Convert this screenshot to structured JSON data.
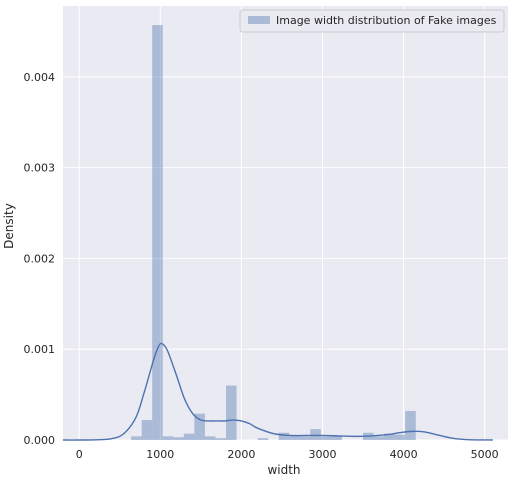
{
  "chart_data": {
    "type": "bar",
    "title": "",
    "xlabel": "width",
    "ylabel": "Density",
    "xlim": [
      -200,
      5300
    ],
    "ylim": [
      0,
      0.00478
    ],
    "x_ticks": [
      0,
      1000,
      2000,
      3000,
      4000,
      5000
    ],
    "x_tick_labels": [
      "0",
      "1000",
      "2000",
      "3000",
      "4000",
      "5000"
    ],
    "y_ticks": [
      0,
      0.001,
      0.002,
      0.003,
      0.004
    ],
    "y_tick_labels": [
      "0.000",
      "0.001",
      "0.002",
      "0.003",
      "0.004"
    ],
    "grid": true,
    "legend_position": "top-right",
    "colors": {
      "background": "#eaeaf2",
      "grid": "#ffffff",
      "bar_fill": "#4c72b0",
      "bar_opacity": 0.4,
      "kde_line": "#4c72b0"
    },
    "series": [
      {
        "name": "Image width distribution of Fake images",
        "type": "histogram",
        "bins": [
          {
            "x0": 640,
            "x1": 770,
            "density": 4e-05
          },
          {
            "x0": 770,
            "x1": 900,
            "density": 0.00022
          },
          {
            "x0": 900,
            "x1": 1030,
            "density": 0.00457
          },
          {
            "x0": 1030,
            "x1": 1160,
            "density": 4e-05
          },
          {
            "x0": 1160,
            "x1": 1290,
            "density": 3e-05
          },
          {
            "x0": 1290,
            "x1": 1420,
            "density": 7e-05
          },
          {
            "x0": 1420,
            "x1": 1550,
            "density": 0.00029
          },
          {
            "x0": 1550,
            "x1": 1680,
            "density": 4e-05
          },
          {
            "x0": 1680,
            "x1": 1810,
            "density": 2e-05
          },
          {
            "x0": 1810,
            "x1": 1940,
            "density": 0.0006
          },
          {
            "x0": 2200,
            "x1": 2330,
            "density": 2e-05
          },
          {
            "x0": 2460,
            "x1": 2590,
            "density": 8e-05
          },
          {
            "x0": 2590,
            "x1": 2720,
            "density": 5e-05
          },
          {
            "x0": 2720,
            "x1": 2850,
            "density": 4e-05
          },
          {
            "x0": 2850,
            "x1": 2980,
            "density": 0.00012
          },
          {
            "x0": 2980,
            "x1": 3110,
            "density": 4e-05
          },
          {
            "x0": 3110,
            "x1": 3240,
            "density": 4e-05
          },
          {
            "x0": 3500,
            "x1": 3630,
            "density": 8e-05
          },
          {
            "x0": 3630,
            "x1": 3760,
            "density": 4e-05
          },
          {
            "x0": 3760,
            "x1": 3890,
            "density": 7e-05
          },
          {
            "x0": 3890,
            "x1": 4020,
            "density": 6e-05
          },
          {
            "x0": 4020,
            "x1": 4150,
            "density": 0.00032
          }
        ],
        "kde": {
          "x": [
            -200,
            0,
            200,
            400,
            550,
            700,
            800,
            900,
            950,
            1000,
            1050,
            1100,
            1200,
            1300,
            1400,
            1500,
            1600,
            1700,
            1800,
            1900,
            2000,
            2100,
            2200,
            2400,
            2600,
            2800,
            3000,
            3200,
            3400,
            3600,
            3800,
            3950,
            4100,
            4250,
            4400,
            4600,
            4800,
            5100
          ],
          "y": [
            0,
            0,
            2e-06,
            1.5e-05,
            7e-05,
            0.00025,
            0.00052,
            0.00083,
            0.00097,
            0.00106,
            0.00104,
            0.00096,
            0.00071,
            0.00045,
            0.00029,
            0.00022,
            0.00021,
            0.00021,
            0.00021,
            0.00022,
            0.00021,
            0.00018,
            0.00013,
            7e-05,
            5e-05,
            5e-05,
            5e-05,
            4.5e-05,
            4e-05,
            4.5e-05,
            6e-05,
            8e-05,
            9.5e-05,
            9e-05,
            6e-05,
            2e-05,
            4e-06,
            0
          ]
        }
      }
    ]
  }
}
